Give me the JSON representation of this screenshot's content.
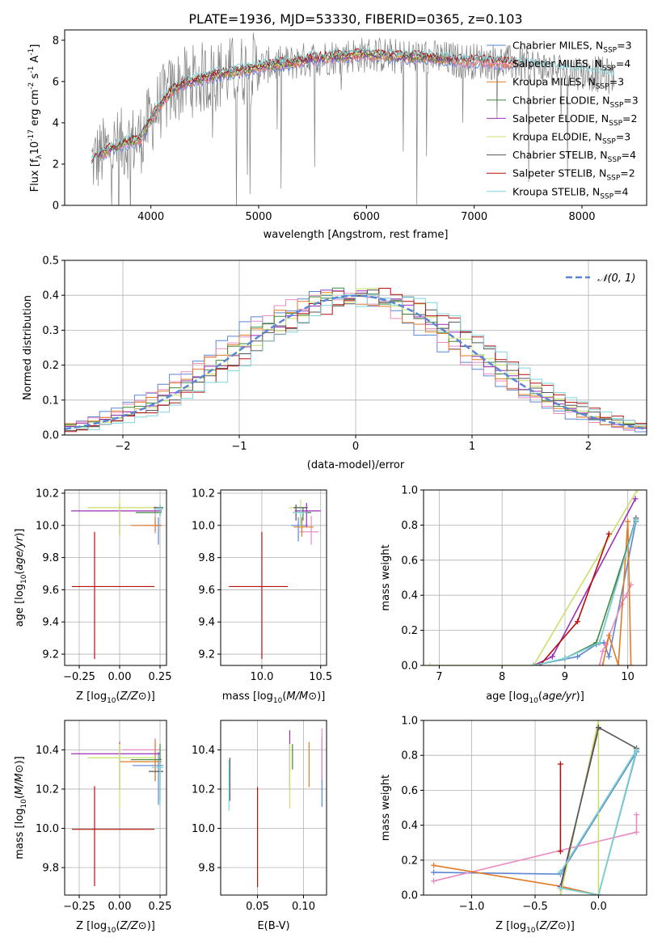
{
  "figure": {
    "title": "PLATE=1936, MJD=53330, FIBERID=0365, z=0.103"
  },
  "colors": {
    "Chabrier MILES": "#5b86d6",
    "Salpeter MILES": "#e98bc1",
    "Kroupa MILES": "#e07b25",
    "Chabrier ELODIE": "#3e8a3e",
    "Salpeter ELODIE": "#9b2fb8",
    "Kroupa ELODIE": "#c9e06a",
    "Chabrier STELIB": "#555555",
    "Salpeter STELIB": "#b50f0f",
    "Kroupa STELIB": "#7fd4d9",
    "data": "#808080",
    "normal": "#5b86d6"
  },
  "chart_data": [
    {
      "type": "line",
      "id": "spectrum",
      "xlabel": "wavelength [Angstrom, rest frame]",
      "ylabel_parts": [
        "Flux [f",
        "λ",
        "10",
        "-17",
        " erg cm",
        "-2",
        " s",
        "-1",
        " A",
        "-1",
        "]"
      ],
      "xlim": [
        3200,
        8600
      ],
      "ylim": [
        0,
        8.5
      ],
      "xticks": [
        4000,
        5000,
        6000,
        7000,
        8000
      ],
      "yticks": [
        0,
        2,
        4,
        6,
        8
      ],
      "legend": [
        {
          "model": "Chabrier MILES",
          "imf": "Chabrier",
          "lib": "MILES",
          "nssp": "3"
        },
        {
          "model": "Salpeter MILES",
          "imf": "Salpeter",
          "lib": "MILES",
          "nssp": "4"
        },
        {
          "model": "Kroupa MILES",
          "imf": "Kroupa",
          "lib": "MILES",
          "nssp": "3"
        },
        {
          "model": "Chabrier ELODIE",
          "imf": "Chabrier",
          "lib": "ELODIE",
          "nssp": "3"
        },
        {
          "model": "Salpeter ELODIE",
          "imf": "Salpeter",
          "lib": "ELODIE",
          "nssp": "2"
        },
        {
          "model": "Kroupa ELODIE",
          "imf": "Kroupa",
          "lib": "ELODIE",
          "nssp": "3"
        },
        {
          "model": "Chabrier STELIB",
          "imf": "Chabrier",
          "lib": "STELIB",
          "nssp": "4"
        },
        {
          "model": "Salpeter STELIB",
          "imf": "Salpeter",
          "lib": "STELIB",
          "nssp": "2"
        },
        {
          "model": "Kroupa STELIB",
          "imf": "Kroupa",
          "lib": "STELIB",
          "nssp": "4"
        }
      ],
      "legend_position": "upper right",
      "continuum": {
        "x": [
          3450,
          3600,
          3750,
          3900,
          4000,
          4100,
          4200,
          4300,
          4500,
          4700,
          4900,
          5100,
          5300,
          5500,
          5700,
          5900,
          6100,
          6300,
          6500,
          6700,
          6900,
          7100,
          7300,
          7500,
          7700,
          7900,
          8100,
          8300
        ],
        "y": [
          2.1,
          2.7,
          3.0,
          3.2,
          4.2,
          5.0,
          5.6,
          5.9,
          6.2,
          6.4,
          6.6,
          6.8,
          6.9,
          7.1,
          7.2,
          7.3,
          7.3,
          7.2,
          7.2,
          7.1,
          7.0,
          7.0,
          6.9,
          6.8,
          6.6,
          6.5,
          6.4,
          6.2
        ]
      }
    },
    {
      "type": "histogram",
      "id": "residuals",
      "xlabel": "(data-model)/error",
      "ylabel": "Normed distribution",
      "xlim": [
        -2.5,
        2.5
      ],
      "ylim": [
        0,
        0.5
      ],
      "xticks": [
        -2,
        -1,
        0,
        1,
        2
      ],
      "yticks": [
        0.0,
        0.1,
        0.2,
        0.3,
        0.4,
        0.5
      ],
      "bin_width": 0.1,
      "legend": [
        "𝒩(0, 1)"
      ],
      "legend_position": "upper right"
    },
    {
      "type": "scatter",
      "id": "age-vs-Z",
      "xlabel": "Z [log10(Z/Z⊙)]",
      "ylabel": "age [log10(age/yr)]",
      "xlim": [
        -0.34,
        0.29
      ],
      "ylim": [
        9.13,
        10.22
      ],
      "xticks": [
        -0.25,
        0.0,
        0.25
      ],
      "yticks": [
        9.2,
        9.4,
        9.6,
        9.8,
        10.0,
        10.2
      ],
      "points": [
        {
          "model": "Chabrier MILES",
          "x": 0.24,
          "y": 10.0,
          "xerr": [
            0.02,
            0.02
          ],
          "yerr": [
            0.12,
            0.05
          ]
        },
        {
          "model": "Salpeter MILES",
          "x": 0.22,
          "y": 10.0,
          "xerr": [
            0.07,
            0.02
          ],
          "yerr": [
            0.05,
            0.12
          ]
        },
        {
          "model": "Kroupa MILES",
          "x": 0.22,
          "y": 10.0,
          "xerr": [
            0.15,
            0.04
          ],
          "yerr": [
            0.04,
            0.05
          ]
        },
        {
          "model": "Chabrier ELODIE",
          "x": 0.25,
          "y": 10.08,
          "xerr": [
            0.15,
            0.01
          ],
          "yerr": [
            0.02,
            0.02
          ]
        },
        {
          "model": "Salpeter ELODIE",
          "x": 0.0,
          "y": 10.09,
          "xerr": [
            0.3,
            0.26
          ],
          "yerr": [
            0.15,
            0.04
          ]
        },
        {
          "model": "Kroupa ELODIE",
          "x": 0.0,
          "y": 10.11,
          "xerr": [
            0.2,
            0.26
          ],
          "yerr": [
            0.18,
            0.05
          ]
        },
        {
          "model": "Chabrier STELIB",
          "x": 0.25,
          "y": 10.11,
          "xerr": [
            0.04,
            0.02
          ],
          "yerr": [
            0.05,
            0.02
          ]
        },
        {
          "model": "Salpeter STELIB",
          "x": -0.155,
          "y": 9.62,
          "xerr": [
            0.14,
            0.37
          ],
          "yerr": [
            0.45,
            0.34
          ]
        },
        {
          "model": "Kroupa STELIB",
          "x": 0.25,
          "y": 10.1,
          "xerr": [
            0.04,
            0.02
          ],
          "yerr": [
            0.04,
            0.03
          ]
        }
      ]
    },
    {
      "type": "scatter",
      "id": "age-vs-mass",
      "xlabel": "mass [log10(M/M⊙)]",
      "ylabel": "",
      "xlim": [
        9.65,
        10.55
      ],
      "ylim": [
        9.13,
        10.22
      ],
      "xticks": [
        10.0,
        10.5
      ],
      "yticks": [
        9.2,
        9.4,
        9.6,
        9.8,
        10.0,
        10.2
      ],
      "points": [
        {
          "model": "Chabrier MILES",
          "x": 10.31,
          "y": 10.0,
          "xerr": [
            0.06,
            0.08
          ],
          "yerr": [
            0.1,
            0.05
          ]
        },
        {
          "model": "Salpeter MILES",
          "x": 10.42,
          "y": 9.96,
          "xerr": [
            0.1,
            0.06
          ],
          "yerr": [
            0.08,
            0.1
          ]
        },
        {
          "model": "Kroupa MILES",
          "x": 10.34,
          "y": 9.99,
          "xerr": [
            0.07,
            0.1
          ],
          "yerr": [
            0.06,
            0.06
          ]
        },
        {
          "model": "Chabrier ELODIE",
          "x": 10.35,
          "y": 10.08,
          "xerr": [
            0.05,
            0.07
          ],
          "yerr": [
            0.05,
            0.03
          ]
        },
        {
          "model": "Salpeter ELODIE",
          "x": 10.38,
          "y": 10.09,
          "xerr": [
            0.1,
            0.12
          ],
          "yerr": [
            0.1,
            0.05
          ]
        },
        {
          "model": "Kroupa ELODIE",
          "x": 10.33,
          "y": 10.11,
          "xerr": [
            0.1,
            0.06
          ],
          "yerr": [
            0.13,
            0.05
          ]
        },
        {
          "model": "Chabrier STELIB",
          "x": 10.29,
          "y": 10.11,
          "xerr": [
            0.02,
            0.1
          ],
          "yerr": [
            0.08,
            0.02
          ]
        },
        {
          "model": "Salpeter STELIB",
          "x": 10.0,
          "y": 9.62,
          "xerr": [
            0.28,
            0.22
          ],
          "yerr": [
            0.45,
            0.34
          ]
        },
        {
          "model": "Kroupa STELIB",
          "x": 10.33,
          "y": 10.08,
          "xerr": [
            0.07,
            0.05
          ],
          "yerr": [
            0.08,
            0.03
          ]
        }
      ]
    },
    {
      "type": "line",
      "id": "weight-vs-age",
      "xlabel": "age [log10(age/yr)]",
      "ylabel": "mass weight",
      "xlim": [
        6.75,
        10.3
      ],
      "ylim": [
        0,
        1.0
      ],
      "xticks": [
        7,
        8,
        9,
        10
      ],
      "yticks": [
        0.0,
        0.2,
        0.4,
        0.6,
        0.8,
        1.0
      ],
      "series": [
        {
          "model": "Chabrier MILES",
          "x": [
            8.5,
            9.2,
            9.5,
            9.62,
            9.7,
            10.13
          ],
          "y": [
            0.0,
            0.05,
            0.12,
            0.13,
            0.05,
            0.82
          ]
        },
        {
          "model": "Salpeter MILES",
          "x": [
            9.55,
            9.6,
            9.65,
            9.9,
            9.98,
            10.05
          ],
          "y": [
            0.0,
            0.08,
            0.12,
            0.35,
            0.4,
            0.46
          ]
        },
        {
          "model": "Kroupa MILES",
          "x": [
            9.6,
            9.7,
            9.85,
            10.0,
            10.05
          ],
          "y": [
            0.0,
            0.17,
            0.0,
            0.82,
            0.0
          ]
        },
        {
          "model": "Chabrier ELODIE",
          "x": [
            8.5,
            9.0,
            9.5,
            10.13
          ],
          "y": [
            0.0,
            0.04,
            0.13,
            0.83
          ]
        },
        {
          "model": "Salpeter ELODIE",
          "x": [
            8.5,
            8.8,
            10.12
          ],
          "y": [
            0.0,
            0.05,
            0.95
          ]
        },
        {
          "model": "Kroupa ELODIE",
          "x": [
            6.85,
            8.5,
            10.15
          ],
          "y": [
            0.0,
            0.0,
            1.0
          ]
        },
        {
          "model": "Chabrier STELIB",
          "x": [
            9.0,
            9.55,
            10.13
          ],
          "y": [
            0.04,
            0.13,
            0.84
          ]
        },
        {
          "model": "Salpeter STELIB",
          "x": [
            8.6,
            9.2,
            9.7
          ],
          "y": [
            0.0,
            0.25,
            0.75
          ]
        },
        {
          "model": "Kroupa STELIB",
          "x": [
            8.5,
            9.0,
            9.55,
            10.13
          ],
          "y": [
            0.0,
            0.04,
            0.13,
            0.83
          ]
        }
      ]
    },
    {
      "type": "scatter",
      "id": "mass-vs-Z",
      "xlabel": "Z [log10(Z/Z⊙)]",
      "ylabel": "mass [log10(M/M⊙)]",
      "xlim": [
        -0.34,
        0.29
      ],
      "ylim": [
        9.66,
        10.55
      ],
      "xticks": [
        -0.25,
        0.0,
        0.25
      ],
      "yticks": [
        9.8,
        10.0,
        10.2,
        10.4
      ],
      "points": [
        {
          "model": "Chabrier MILES",
          "x": 0.24,
          "y": 10.32,
          "xerr": [
            0.16,
            0.03
          ],
          "yerr": [
            0.2,
            0.07
          ]
        },
        {
          "model": "Salpeter MILES",
          "x": 0.22,
          "y": 10.4,
          "xerr": [
            0.2,
            0.03
          ],
          "yerr": [
            0.16,
            0.06
          ]
        },
        {
          "model": "Kroupa MILES",
          "x": 0.22,
          "y": 10.34,
          "xerr": [
            0.22,
            0.04
          ],
          "yerr": [
            0.1,
            0.11
          ]
        },
        {
          "model": "Chabrier ELODIE",
          "x": 0.25,
          "y": 10.35,
          "xerr": [
            0.18,
            0.01
          ],
          "yerr": [
            0.05,
            0.08
          ]
        },
        {
          "model": "Salpeter ELODIE",
          "x": 0.0,
          "y": 10.38,
          "xerr": [
            0.3,
            0.25
          ],
          "yerr": [
            0.18,
            0.06
          ]
        },
        {
          "model": "Kroupa ELODIE",
          "x": 0.0,
          "y": 10.36,
          "xerr": [
            0.2,
            0.22
          ],
          "yerr": [
            0.26,
            0.07
          ]
        },
        {
          "model": "Chabrier STELIB",
          "x": 0.25,
          "y": 10.29,
          "xerr": [
            0.07,
            0.02
          ],
          "yerr": [
            0.15,
            0.07
          ]
        },
        {
          "model": "Salpeter STELIB",
          "x": -0.155,
          "y": 9.995,
          "xerr": [
            0.14,
            0.37
          ],
          "yerr": [
            0.29,
            0.22
          ]
        },
        {
          "model": "Kroupa STELIB",
          "x": 0.25,
          "y": 10.31,
          "xerr": [
            0.05,
            0.02
          ],
          "yerr": [
            0.2,
            0.04
          ]
        }
      ]
    },
    {
      "type": "scatter",
      "id": "mass-vs-ebv",
      "xlabel": "E(B-V)",
      "ylabel": "",
      "xlim": [
        0.01,
        0.125
      ],
      "ylim": [
        9.66,
        10.55
      ],
      "xticks": [
        0.05,
        0.1
      ],
      "yticks": [
        9.8,
        10.0,
        10.2,
        10.4
      ],
      "points": [
        {
          "model": "Chabrier MILES",
          "x": 0.12,
          "yrange": [
            10.11,
            10.46
          ]
        },
        {
          "model": "Salpeter MILES",
          "x": 0.12,
          "yrange": [
            10.25,
            10.51
          ]
        },
        {
          "model": "Kroupa MILES",
          "x": 0.106,
          "yrange": [
            10.21,
            10.44
          ]
        },
        {
          "model": "Chabrier ELODIE",
          "x": 0.088,
          "yrange": [
            10.3,
            10.43
          ]
        },
        {
          "model": "Salpeter ELODIE",
          "x": 0.085,
          "yrange": [
            10.2,
            10.5
          ]
        },
        {
          "model": "Kroupa ELODIE",
          "x": 0.085,
          "yrange": [
            10.1,
            10.43
          ]
        },
        {
          "model": "Chabrier STELIB",
          "x": 0.02,
          "yrange": [
            10.14,
            10.36
          ]
        },
        {
          "model": "Salpeter STELIB",
          "x": 0.05,
          "yrange": [
            9.7,
            10.21
          ]
        },
        {
          "model": "Kroupa STELIB",
          "x": 0.019,
          "yrange": [
            10.09,
            10.35
          ]
        }
      ]
    },
    {
      "type": "line",
      "id": "weight-vs-Z",
      "xlabel": "Z [log10(Z/Z⊙)]",
      "ylabel": "mass weight",
      "xlim": [
        -1.38,
        0.38
      ],
      "ylim": [
        0,
        1.0
      ],
      "xticks": [
        -1.0,
        -0.5,
        0.0
      ],
      "yticks": [
        0.0,
        0.2,
        0.4,
        0.6,
        0.8,
        1.0
      ],
      "series": [
        {
          "model": "Chabrier MILES",
          "x": [
            -1.3,
            -0.3,
            0.3,
            0.0,
            -0.3
          ],
          "y": [
            0.13,
            0.12,
            0.82,
            0.0,
            0.05
          ]
        },
        {
          "model": "Salpeter MILES",
          "x": [
            -1.3,
            0.3,
            0.3
          ],
          "y": [
            0.08,
            0.36,
            0.46
          ]
        },
        {
          "model": "Kroupa MILES",
          "x": [
            -1.3,
            -0.3,
            0.0
          ],
          "y": [
            0.17,
            0.05,
            0.0
          ]
        },
        {
          "model": "Chabrier ELODIE",
          "x": [
            -0.3,
            0.0,
            0.3,
            -0.3
          ],
          "y": [
            0.04,
            0.0,
            0.83,
            0.13
          ]
        },
        {
          "model": "Salpeter ELODIE",
          "x": [
            -0.3,
            0.0
          ],
          "y": [
            0.05,
            0.95
          ]
        },
        {
          "model": "Kroupa ELODIE",
          "x": [
            0.0,
            0.0,
            -0.3
          ],
          "y": [
            0.0,
            1.0,
            0.0
          ]
        },
        {
          "model": "Chabrier STELIB",
          "x": [
            -0.3,
            0.0,
            0.3
          ],
          "y": [
            0.04,
            0.96,
            0.84
          ]
        },
        {
          "model": "Salpeter STELIB",
          "x": [
            -0.3,
            -0.3
          ],
          "y": [
            0.25,
            0.75
          ]
        },
        {
          "model": "Kroupa STELIB",
          "x": [
            -0.3,
            0.0,
            0.3,
            -0.3
          ],
          "y": [
            0.04,
            0.0,
            0.83,
            0.13
          ]
        }
      ]
    }
  ]
}
